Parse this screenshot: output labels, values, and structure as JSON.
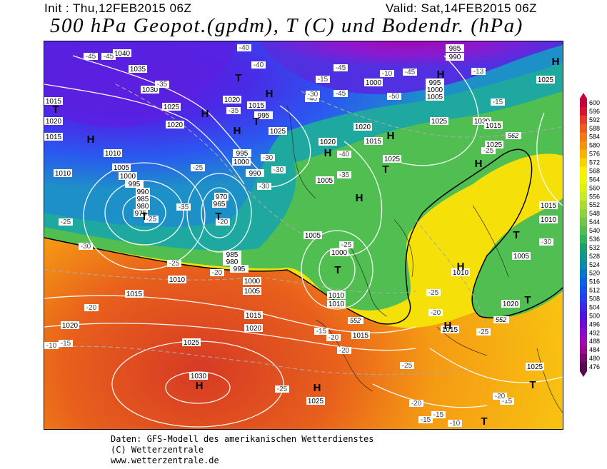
{
  "header": {
    "init": "Init : Thu,12FEB2015 06Z",
    "valid": "Valid: Sat,14FEB2015 06Z",
    "title": "500 hPa Geopot.(gpdm), T (C) und Bodendr. (hPa)"
  },
  "colorbar": {
    "levels": [
      "600",
      "596",
      "592",
      "588",
      "584",
      "580",
      "576",
      "572",
      "568",
      "564",
      "560",
      "556",
      "552",
      "548",
      "544",
      "540",
      "536",
      "532",
      "528",
      "524",
      "520",
      "516",
      "512",
      "508",
      "504",
      "500",
      "496",
      "492",
      "488",
      "484",
      "480",
      "476"
    ],
    "colors": [
      "#c8003c",
      "#dc1432",
      "#e63c28",
      "#f05a1e",
      "#f57814",
      "#f5960a",
      "#fab400",
      "#fad200",
      "#faf000",
      "#f0f50a",
      "#dcf014",
      "#c8eb28",
      "#aadc32",
      "#8cd23c",
      "#6ec846",
      "#50be50",
      "#32b45a",
      "#1ea06e",
      "#14968c",
      "#0a8caa",
      "#0a78c8",
      "#0a64e6",
      "#1450f0",
      "#283cf0",
      "#3c28e6",
      "#5014dc",
      "#6e0ad2",
      "#8c0ac8",
      "#a00ab4",
      "#9b0a8c",
      "#780a6e",
      "#5a0a50"
    ]
  },
  "map_labels": {
    "pressure": [
      "1040",
      "1035",
      "1030",
      "1025",
      "1020",
      "1015",
      "1010",
      "1005",
      "1000",
      "995",
      "990",
      "985",
      "980",
      "975",
      "970",
      "965",
      "1030",
      "1025",
      "1020",
      "1015",
      "1010",
      "1005",
      "1000",
      "995",
      "990",
      "985",
      "980",
      "995",
      "1000",
      "1005",
      "1010",
      "1015",
      "1020",
      "1025",
      "1015",
      "1010",
      "1005",
      "1000",
      "995",
      "1020",
      "1025",
      "1030",
      "1015",
      "1020",
      "1025",
      "1015",
      "1010",
      "1005",
      "1010",
      "1020",
      "1015",
      "1025",
      "1025",
      "1015",
      "1025",
      "1015",
      "1020",
      "1010",
      "1015",
      "1020",
      "1025",
      "1005",
      "1000",
      "995",
      "990",
      "985",
      "1000",
      "985",
      "980",
      "1040",
      "995",
      "1005",
      "1010"
    ],
    "temp": [
      "-40",
      "-45",
      "-45",
      "-40",
      "-35",
      "-45",
      "-45",
      "-50",
      "-45",
      "-40",
      "-35",
      "-30",
      "-25",
      "-35",
      "-40",
      "-30",
      "-35",
      "-25",
      "-25",
      "-30",
      "-20",
      "-25",
      "-30",
      "-25",
      "-20",
      "-20",
      "-10",
      "-15",
      "-15",
      "-20",
      "-25",
      "-25",
      "-20",
      "-15",
      "-10",
      "-15",
      "-20",
      "-25",
      "-30",
      "-25",
      "-20",
      "-15",
      "-25",
      "-20",
      "-15",
      "-13",
      "-10",
      "-15",
      "-30",
      "-25",
      "-30",
      "-35",
      "-40",
      "-45",
      "-50",
      "-45",
      "-40",
      "-45",
      "-30",
      "-25",
      "-40",
      "-30",
      "-25",
      "-20"
    ],
    "highs": [
      "H",
      "H",
      "H",
      "H",
      "H",
      "H",
      "H",
      "H",
      "H",
      "H",
      "H",
      "H",
      "H",
      "H"
    ],
    "lows": [
      "T",
      "T",
      "T",
      "T",
      "T",
      "T",
      "T",
      "T",
      "T",
      "T",
      "T"
    ],
    "heights": [
      "552",
      "552",
      "552",
      "562"
    ]
  },
  "footer": {
    "line1": "Daten: GFS-Modell des amerikanischen Wetterdienstes",
    "line2": "(C) Wetterzentrale",
    "line3": "www.wetterzentrale.de"
  }
}
